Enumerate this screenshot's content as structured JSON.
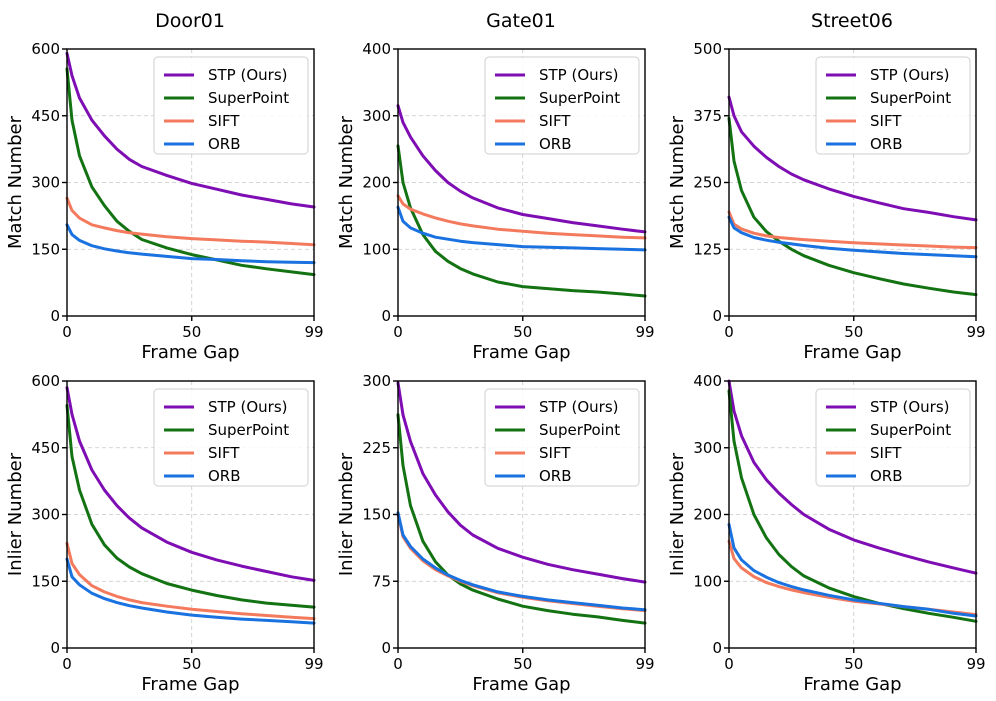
{
  "column_titles": [
    "Door01",
    "Gate01",
    "Street06"
  ],
  "colors": {
    "STP (Ours)": "#7e0db3",
    "SuperPoint": "#137312",
    "SIFT": "#f47a5e",
    "ORB": "#1a72e0"
  },
  "legend_labels": [
    "STP (Ours)",
    "SuperPoint",
    "SIFT",
    "ORB"
  ],
  "chart_data": [
    {
      "type": "line",
      "title": "Door01",
      "xlabel": "Frame Gap",
      "ylabel": "Match Number",
      "xlim": [
        0,
        99
      ],
      "ylim": [
        0,
        600
      ],
      "xticks": [
        0,
        50,
        99
      ],
      "yticks": [
        0,
        150,
        300,
        450,
        600
      ],
      "x": [
        0,
        2,
        5,
        10,
        15,
        20,
        25,
        30,
        40,
        50,
        60,
        70,
        80,
        90,
        99
      ],
      "series": [
        {
          "name": "STP (Ours)",
          "values": [
            590,
            540,
            490,
            440,
            405,
            375,
            352,
            336,
            316,
            298,
            285,
            272,
            262,
            252,
            245
          ]
        },
        {
          "name": "SuperPoint",
          "values": [
            555,
            440,
            360,
            290,
            248,
            213,
            190,
            172,
            153,
            138,
            126,
            114,
            106,
            99,
            93
          ]
        },
        {
          "name": "SIFT",
          "values": [
            265,
            237,
            220,
            205,
            198,
            192,
            187,
            184,
            178,
            174,
            171,
            168,
            166,
            163,
            160
          ]
        },
        {
          "name": "ORB",
          "values": [
            205,
            183,
            170,
            158,
            151,
            146,
            142,
            139,
            134,
            129,
            127,
            124,
            122,
            121,
            120
          ]
        }
      ]
    },
    {
      "type": "line",
      "title": "Gate01",
      "xlabel": "Frame Gap",
      "ylabel": "Match Number",
      "xlim": [
        0,
        99
      ],
      "ylim": [
        0,
        400
      ],
      "xticks": [
        0,
        50,
        99
      ],
      "yticks": [
        0,
        100,
        200,
        300,
        400
      ],
      "x": [
        0,
        2,
        5,
        10,
        15,
        20,
        25,
        30,
        40,
        50,
        60,
        70,
        80,
        90,
        99
      ],
      "series": [
        {
          "name": "STP (Ours)",
          "values": [
            315,
            290,
            268,
            240,
            218,
            200,
            187,
            177,
            162,
            152,
            146,
            140,
            135,
            130,
            126
          ]
        },
        {
          "name": "SuperPoint",
          "values": [
            255,
            200,
            162,
            122,
            97,
            82,
            71,
            63,
            51,
            44,
            41,
            38,
            36,
            33,
            30
          ]
        },
        {
          "name": "SIFT",
          "values": [
            180,
            168,
            160,
            153,
            147,
            142,
            138,
            135,
            130,
            127,
            124,
            122,
            120,
            118,
            117
          ]
        },
        {
          "name": "ORB",
          "values": [
            163,
            142,
            132,
            124,
            118,
            115,
            112,
            110,
            107,
            104,
            103,
            102,
            101,
            100,
            99
          ]
        }
      ]
    },
    {
      "type": "line",
      "title": "Street06",
      "xlabel": "Frame Gap",
      "ylabel": "Match Number",
      "xlim": [
        0,
        99
      ],
      "ylim": [
        0,
        500
      ],
      "xticks": [
        0,
        50,
        99
      ],
      "yticks": [
        0,
        125,
        250,
        375,
        500
      ],
      "x": [
        0,
        2,
        5,
        10,
        15,
        20,
        25,
        30,
        40,
        50,
        60,
        70,
        80,
        90,
        99
      ],
      "series": [
        {
          "name": "STP (Ours)",
          "values": [
            410,
            375,
            345,
            318,
            297,
            280,
            266,
            255,
            238,
            224,
            212,
            201,
            194,
            186,
            180
          ]
        },
        {
          "name": "SuperPoint",
          "values": [
            370,
            290,
            235,
            185,
            158,
            140,
            125,
            113,
            95,
            81,
            70,
            60,
            52,
            45,
            40
          ]
        },
        {
          "name": "SIFT",
          "values": [
            195,
            172,
            163,
            155,
            150,
            147,
            145,
            143,
            140,
            137,
            135,
            133,
            131,
            129,
            128
          ]
        },
        {
          "name": "ORB",
          "values": [
            185,
            165,
            156,
            147,
            142,
            138,
            135,
            132,
            127,
            123,
            120,
            117,
            115,
            113,
            111
          ]
        }
      ]
    },
    {
      "type": "line",
      "title": "",
      "xlabel": "Frame Gap",
      "ylabel": "Inlier Number",
      "xlim": [
        0,
        99
      ],
      "ylim": [
        0,
        600
      ],
      "xticks": [
        0,
        50,
        99
      ],
      "yticks": [
        0,
        150,
        300,
        450,
        600
      ],
      "x": [
        0,
        2,
        5,
        10,
        15,
        20,
        25,
        30,
        40,
        50,
        60,
        70,
        80,
        90,
        99
      ],
      "series": [
        {
          "name": "STP (Ours)",
          "values": [
            585,
            525,
            465,
            400,
            355,
            320,
            292,
            270,
            238,
            215,
            198,
            184,
            172,
            160,
            152
          ]
        },
        {
          "name": "SuperPoint",
          "values": [
            545,
            430,
            355,
            278,
            232,
            202,
            182,
            167,
            145,
            130,
            118,
            108,
            101,
            96,
            92
          ]
        },
        {
          "name": "SIFT",
          "values": [
            235,
            190,
            165,
            140,
            126,
            116,
            108,
            102,
            94,
            87,
            82,
            77,
            73,
            69,
            66
          ]
        },
        {
          "name": "ORB",
          "values": [
            200,
            160,
            142,
            123,
            111,
            102,
            95,
            90,
            81,
            74,
            69,
            65,
            62,
            59,
            56
          ]
        }
      ]
    },
    {
      "type": "line",
      "title": "",
      "xlabel": "Frame Gap",
      "ylabel": "Inlier Number",
      "xlim": [
        0,
        99
      ],
      "ylim": [
        0,
        300
      ],
      "xticks": [
        0,
        50,
        99
      ],
      "yticks": [
        0,
        75,
        150,
        225,
        300
      ],
      "x": [
        0,
        2,
        5,
        10,
        15,
        20,
        25,
        30,
        40,
        50,
        60,
        70,
        80,
        90,
        99
      ],
      "series": [
        {
          "name": "STP (Ours)",
          "values": [
            298,
            262,
            232,
            196,
            172,
            153,
            138,
            127,
            112,
            102,
            94,
            88,
            83,
            78,
            74
          ]
        },
        {
          "name": "SuperPoint",
          "values": [
            262,
            205,
            160,
            120,
            97,
            82,
            72,
            65,
            55,
            47,
            42,
            38,
            35,
            31,
            28
          ]
        },
        {
          "name": "SIFT",
          "values": [
            150,
            125,
            112,
            98,
            88,
            81,
            75,
            70,
            62,
            57,
            53,
            50,
            47,
            44,
            42
          ]
        },
        {
          "name": "ORB",
          "values": [
            152,
            127,
            114,
            100,
            90,
            82,
            76,
            71,
            63,
            58,
            54,
            51,
            48,
            45,
            43
          ]
        }
      ]
    },
    {
      "type": "line",
      "title": "",
      "xlabel": "Frame Gap",
      "ylabel": "Inlier Number",
      "xlim": [
        0,
        99
      ],
      "ylim": [
        0,
        400
      ],
      "xticks": [
        0,
        50,
        99
      ],
      "yticks": [
        0,
        100,
        200,
        300,
        400
      ],
      "x": [
        0,
        2,
        5,
        10,
        15,
        20,
        25,
        30,
        40,
        50,
        60,
        70,
        80,
        90,
        99
      ],
      "series": [
        {
          "name": "STP (Ours)",
          "values": [
            400,
            355,
            318,
            278,
            252,
            232,
            215,
            200,
            178,
            162,
            150,
            139,
            129,
            120,
            112
          ]
        },
        {
          "name": "SuperPoint",
          "values": [
            385,
            310,
            255,
            200,
            165,
            140,
            122,
            108,
            90,
            77,
            67,
            59,
            52,
            46,
            40
          ]
        },
        {
          "name": "SIFT",
          "values": [
            160,
            134,
            120,
            107,
            98,
            92,
            87,
            83,
            76,
            70,
            66,
            62,
            58,
            54,
            50
          ]
        },
        {
          "name": "ORB",
          "values": [
            185,
            150,
            132,
            116,
            106,
            98,
            92,
            87,
            79,
            72,
            67,
            62,
            58,
            52,
            48
          ]
        }
      ]
    }
  ]
}
